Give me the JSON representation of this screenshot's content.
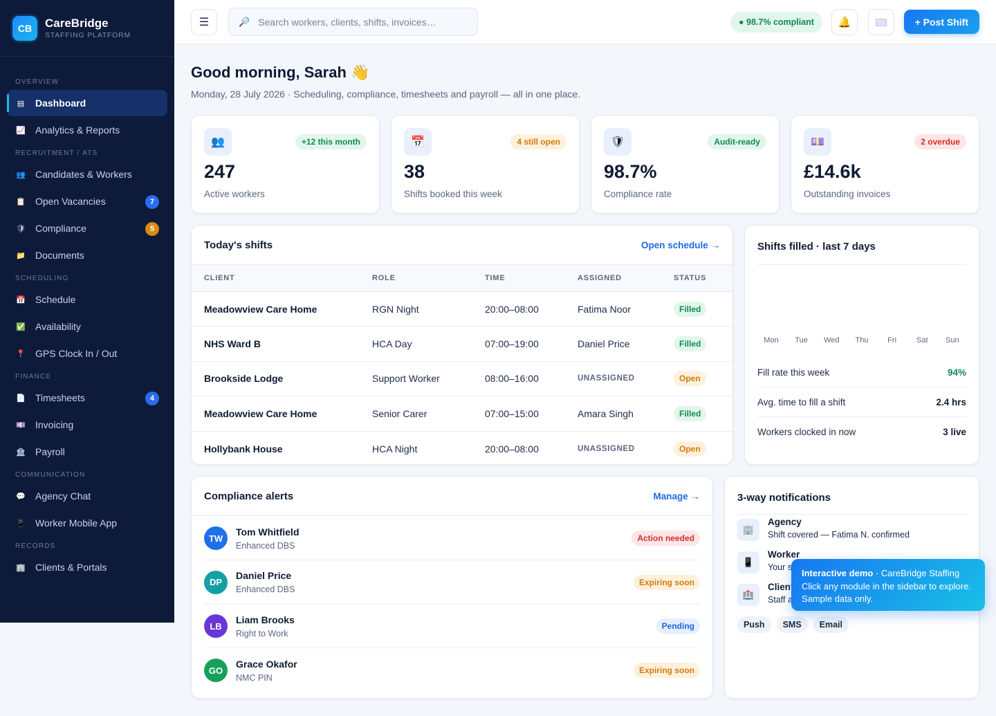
{
  "brand": {
    "logo": "CB",
    "name": "CareBridge",
    "subtitle": "STAFFING PLATFORM"
  },
  "sidebar": {
    "sections": [
      {
        "title": "OVERVIEW",
        "items": [
          {
            "label": "Dashboard",
            "icon": "dashboard-icon",
            "active": true
          },
          {
            "label": "Analytics & Reports",
            "icon": "chart-icon"
          }
        ]
      },
      {
        "title": "RECRUITMENT / ATS",
        "items": [
          {
            "label": "Candidates & Workers",
            "icon": "people-icon"
          },
          {
            "label": "Open Vacancies",
            "icon": "clipboard-icon",
            "badge": "7",
            "badge_color": "#2a6cf0"
          },
          {
            "label": "Compliance",
            "icon": "shield-icon",
            "badge": "5",
            "badge_color": "#d98a12"
          },
          {
            "label": "Documents",
            "icon": "folder-icon"
          }
        ]
      },
      {
        "title": "SCHEDULING",
        "items": [
          {
            "label": "Schedule",
            "icon": "calendar-icon"
          },
          {
            "label": "Availability",
            "icon": "check-icon"
          },
          {
            "label": "GPS Clock In / Out",
            "icon": "pin-icon"
          }
        ]
      },
      {
        "title": "FINANCE",
        "items": [
          {
            "label": "Timesheets",
            "icon": "timesheet-icon",
            "badge": "4",
            "badge_color": "#2a6cf0"
          },
          {
            "label": "Invoicing",
            "icon": "invoice-icon"
          },
          {
            "label": "Payroll",
            "icon": "bank-icon"
          }
        ]
      },
      {
        "title": "COMMUNICATION",
        "items": [
          {
            "label": "Agency Chat",
            "icon": "chat-icon"
          },
          {
            "label": "Worker Mobile App",
            "icon": "mobile-icon"
          }
        ]
      },
      {
        "title": "RECORDS",
        "items": [
          {
            "label": "Clients & Portals",
            "icon": "building-icon"
          }
        ]
      }
    ]
  },
  "topbar": {
    "search_placeholder": "Search workers, clients, shifts, invoices…",
    "compliance_pill": "● 98.7% compliant",
    "post_shift_label": "+ Post Shift"
  },
  "greeting": {
    "title": "Good morning, Sarah 👋",
    "subtitle": "Monday, 28 July 2026 · Scheduling, compliance, timesheets and payroll — all in one place."
  },
  "stats": [
    {
      "icon": "people-icon",
      "glyph": "👥",
      "tag": "+12 this month",
      "tag_style": "green",
      "value": "247",
      "label": "Active workers"
    },
    {
      "icon": "calendar-icon",
      "glyph": "📅",
      "tag": "4 still open",
      "tag_style": "orange",
      "value": "38",
      "label": "Shifts booked this week"
    },
    {
      "icon": "shield-icon",
      "glyph": "🛡",
      "tag": "Audit-ready",
      "tag_style": "green",
      "value": "98.7%",
      "label": "Compliance rate"
    },
    {
      "icon": "invoice-icon",
      "glyph": "💷",
      "tag": "2 overdue",
      "tag_style": "red",
      "value": "£14.6k",
      "label": "Outstanding invoices"
    }
  ],
  "shifts": {
    "title": "Today's shifts",
    "link": "Open schedule →",
    "columns": [
      "CLIENT",
      "ROLE",
      "TIME",
      "ASSIGNED",
      "STATUS"
    ],
    "rows": [
      {
        "client": "Meadowview Care Home",
        "role": "RGN Night",
        "time": "20:00–08:00",
        "assigned": "Fatima Noor",
        "status": "Filled"
      },
      {
        "client": "NHS Ward B",
        "role": "HCA Day",
        "time": "07:00–19:00",
        "assigned": "Daniel Price",
        "status": "Filled"
      },
      {
        "client": "Brookside Lodge",
        "role": "Support Worker",
        "time": "08:00–16:00",
        "assigned": "UNASSIGNED",
        "status": "Open"
      },
      {
        "client": "Meadowview Care Home",
        "role": "Senior Carer",
        "time": "07:00–15:00",
        "assigned": "Amara Singh",
        "status": "Filled"
      },
      {
        "client": "Hollybank House",
        "role": "HCA Night",
        "time": "20:00–08:00",
        "assigned": "UNASSIGNED",
        "status": "Open"
      }
    ]
  },
  "fill_chart": {
    "title": "Shifts filled · last 7 days",
    "days": [
      "Mon",
      "Tue",
      "Wed",
      "Thu",
      "Fri",
      "Sat",
      "Sun"
    ],
    "metrics": [
      {
        "label": "Fill rate this week",
        "value": "94%",
        "color": "#138a53"
      },
      {
        "label": "Avg. time to fill a shift",
        "value": "2.4 hrs",
        "color": "#0f1b33"
      },
      {
        "label": "Workers clocked in now",
        "value": "3 live",
        "color": "#0f1b33"
      }
    ]
  },
  "alerts": {
    "title": "Compliance alerts",
    "link": "Manage →",
    "items": [
      {
        "initials": "TW",
        "color": "#1f6fe8",
        "name": "Tom Whitfield",
        "type": "Enhanced DBS",
        "status": "Action needed",
        "status_style": "red"
      },
      {
        "initials": "DP",
        "color": "#14a0a3",
        "name": "Daniel Price",
        "type": "Enhanced DBS",
        "status": "Expiring soon",
        "status_style": "orange"
      },
      {
        "initials": "LB",
        "color": "#6a35d8",
        "name": "Liam Brooks",
        "type": "Right to Work",
        "status": "Pending",
        "status_style": "blue"
      },
      {
        "initials": "GO",
        "color": "#17a05a",
        "name": "Grace Okafor",
        "type": "NMC PIN",
        "status": "Expiring soon",
        "status_style": "orange"
      }
    ]
  },
  "notifications": {
    "title": "3-way notifications",
    "items": [
      {
        "icon": "building-icon",
        "glyph": "🏢",
        "title": "Agency",
        "text": "Shift covered — Fatima N. confirmed"
      },
      {
        "icon": "mobile-icon",
        "glyph": "📱",
        "title": "Worker",
        "text": "Your s"
      },
      {
        "icon": "hospital-icon",
        "glyph": "🏥",
        "title": "Client",
        "text": "Staff a"
      }
    ],
    "channels": [
      "Push",
      "SMS",
      "Email"
    ]
  },
  "toast": {
    "title": "Interactive demo",
    "title_suffix": " · CareBridge Staffing",
    "line1": "Click any module in the sidebar to explore.",
    "line2": "Sample data only."
  }
}
